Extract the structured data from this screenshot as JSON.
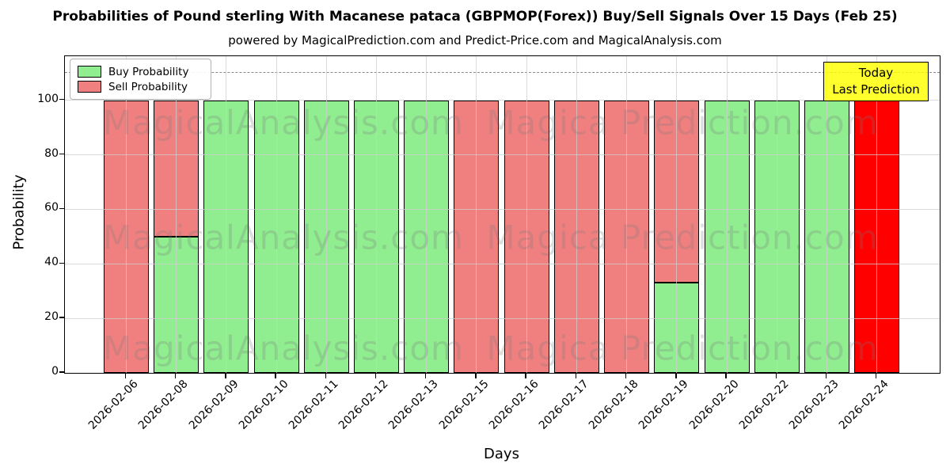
{
  "title": "Probabilities of Pound sterling With Macanese pataca (GBPMOP(Forex)) Buy/Sell Signals Over 15 Days (Feb 25)",
  "subtitle": "powered by MagicalPrediction.com and Predict-Price.com and MagicalAnalysis.com",
  "legend": {
    "items": [
      {
        "label": "Buy Probability",
        "color": "#90EE90"
      },
      {
        "label": "Sell Probability",
        "color": "#F08080"
      }
    ]
  },
  "annotation_box": {
    "line1": "Today",
    "line2": "Last Prediction",
    "bg_color": "#FFFF00"
  },
  "axes": {
    "xlabel": "Days",
    "ylabel": "Probability",
    "yticks": [
      0,
      20,
      40,
      60,
      80,
      100
    ],
    "ylim": [
      0,
      116.2
    ],
    "dashed_cutoff_y": 110,
    "grid": true
  },
  "watermarks": {
    "left_text": "MagicalAnalysis.com",
    "right_text": "Magica Prediction.com"
  },
  "colors": {
    "buy": "#90EE90",
    "sell": "#F08080",
    "today_bar": "#FF0000",
    "grid": "#cfcfcf",
    "dashed": "#8a8a8a",
    "bar_edge": "#000000"
  },
  "chart_data": {
    "type": "bar",
    "stacked": true,
    "title": "Probabilities of Pound sterling With Macanese pataca (GBPMOP(Forex)) Buy/Sell Signals Over 15 Days (Feb 25)",
    "xlabel": "Days",
    "ylabel": "Probability",
    "ylim": [
      0,
      116.2
    ],
    "legend_position": "upper left",
    "grid": "on",
    "categories": [
      "2026-02-06",
      "2026-02-08",
      "2026-02-09",
      "2026-02-10",
      "2026-02-11",
      "2026-02-12",
      "2026-02-13",
      "2026-02-15",
      "2026-02-16",
      "2026-02-17",
      "2026-02-18",
      "2026-02-19",
      "2026-02-20",
      "2026-02-22",
      "2026-02-23",
      "2026-02-24"
    ],
    "series": [
      {
        "name": "Buy Probability",
        "color": "#90EE90",
        "values": [
          0,
          50,
          100,
          100,
          100,
          100,
          100,
          0,
          0,
          0,
          0,
          33,
          100,
          100,
          100,
          0
        ]
      },
      {
        "name": "Sell Probability",
        "color": "#F08080",
        "values": [
          100,
          50,
          0,
          0,
          0,
          0,
          0,
          100,
          100,
          100,
          100,
          67,
          0,
          0,
          0,
          100
        ]
      }
    ],
    "today": {
      "date": "2026-02-24",
      "bar_color": "#FF0000",
      "note": "Today Last Prediction"
    },
    "dashed_line_y": 110
  }
}
